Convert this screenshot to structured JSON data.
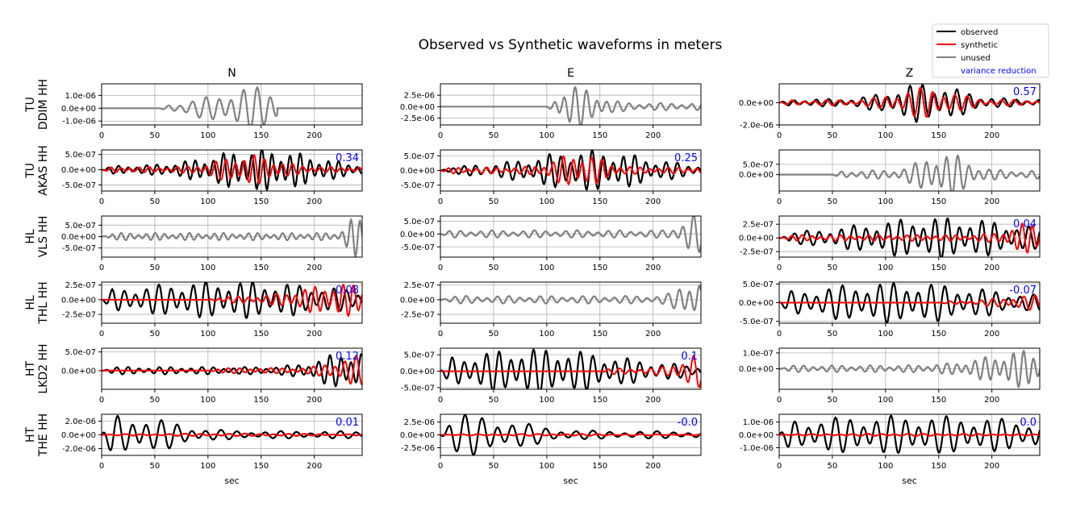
{
  "title": "Observed vs Synthetic waveforms in meters",
  "columns": [
    "N",
    "E",
    "Z"
  ],
  "xlabel": "sec",
  "xlim": [
    0,
    245
  ],
  "xticks": [
    0,
    50,
    100,
    150,
    200
  ],
  "legend": {
    "position": "top-right",
    "items": [
      {
        "label": "observed",
        "color": "#000000",
        "kind": "line"
      },
      {
        "label": "synthetic",
        "color": "#ff0000",
        "kind": "line"
      },
      {
        "label": "unused",
        "color": "#808080",
        "kind": "line"
      },
      {
        "label": "variance reduction",
        "color": "#0000ff",
        "kind": "text"
      }
    ]
  },
  "colors": {
    "observed": "#000000",
    "synthetic": "#ff0000",
    "unused": "#808080",
    "vr": "#0000ff",
    "grid": "#b0b0b0"
  },
  "rows": [
    {
      "net": "TU",
      "sta": "DDIM HH"
    },
    {
      "net": "TU",
      "sta": "AKAS HH"
    },
    {
      "net": "HL",
      "sta": "VLS HH"
    },
    {
      "net": "HL",
      "sta": "THL HH"
    },
    {
      "net": "HT",
      "sta": "LKD2 HH"
    },
    {
      "net": "HT",
      "sta": "THE HH"
    }
  ],
  "chart_data": [
    {
      "type": "line",
      "row": 0,
      "col": "N",
      "used": false,
      "vr": "",
      "ylim": [
        -1.3e-06,
        1.9e-06
      ],
      "yticks": [
        -1e-06,
        0,
        1e-06
      ],
      "ytick_labels": [
        "-1.0e-06",
        "0.0e+00",
        "1.0e-06"
      ],
      "obs": {
        "amp": 1.7e-06,
        "start": 55,
        "peak": 145,
        "spread": 35,
        "period": 12,
        "end": 165
      },
      "syn": null
    },
    {
      "type": "line",
      "row": 0,
      "col": "E",
      "used": false,
      "vr": "",
      "ylim": [
        -4e-06,
        5e-06
      ],
      "yticks": [
        -2.5e-06,
        0,
        2.5e-06
      ],
      "ytick_labels": [
        "-2.5e-06",
        "0.0e+00",
        "2.5e-06"
      ],
      "obs": {
        "amp": 4.5e-06,
        "start": 100,
        "peak": 128,
        "spread": 18,
        "period": 10,
        "end": 245
      },
      "syn": null
    },
    {
      "type": "line",
      "row": 0,
      "col": "Z",
      "used": true,
      "vr": "0.57",
      "ylim": [
        -2e-06,
        1.7e-06
      ],
      "yticks": [
        -2e-06,
        0
      ],
      "ytick_labels": [
        "-2.0e-06",
        "0.0e+00"
      ],
      "obs": {
        "amp": 1.8e-06,
        "start": 0,
        "peak": 138,
        "spread": 30,
        "period": 11,
        "end": 245
      },
      "syn": {
        "amp": 1.4e-06,
        "start": 0,
        "peak": 138,
        "spread": 25,
        "period": 11,
        "end": 245
      }
    },
    {
      "type": "line",
      "row": 1,
      "col": "N",
      "used": true,
      "vr": "0.34",
      "ylim": [
        -7e-07,
        6.5e-07
      ],
      "yticks": [
        -5e-07,
        0,
        5e-07
      ],
      "ytick_labels": [
        "-5.0e-07",
        "0.0e+00",
        "5.0e-07"
      ],
      "obs": {
        "amp": 7e-07,
        "start": 0,
        "peak": 150,
        "spread": 45,
        "period": 9,
        "end": 245
      },
      "syn": {
        "amp": 5e-07,
        "start": 0,
        "peak": 138,
        "spread": 25,
        "period": 9,
        "end": 245
      }
    },
    {
      "type": "line",
      "row": 1,
      "col": "E",
      "used": true,
      "vr": "0.25",
      "ylim": [
        -7e-07,
        7e-07
      ],
      "yticks": [
        -5e-07,
        0,
        5e-07
      ],
      "ytick_labels": [
        "-5.0e-07",
        "0.0e+00",
        "5.0e-07"
      ],
      "obs": {
        "amp": 7e-07,
        "start": 0,
        "peak": 140,
        "spread": 50,
        "period": 10,
        "end": 245
      },
      "syn": {
        "amp": 6e-07,
        "start": 0,
        "peak": 130,
        "spread": 20,
        "period": 9,
        "end": 245
      }
    },
    {
      "type": "line",
      "row": 1,
      "col": "Z",
      "used": false,
      "vr": "",
      "ylim": [
        -8e-07,
        1.2e-06
      ],
      "yticks": [
        0,
        5e-07
      ],
      "ytick_labels": [
        "0.0e+00",
        "5.0e-07"
      ],
      "obs": {
        "amp": 1.1e-06,
        "start": 50,
        "peak": 155,
        "spread": 20,
        "period": 10,
        "end": 245
      },
      "syn": null
    },
    {
      "type": "line",
      "row": 2,
      "col": "N",
      "used": false,
      "vr": "",
      "ylim": [
        -9e-07,
        9e-07
      ],
      "yticks": [
        -5e-07,
        0,
        5e-07
      ],
      "ytick_labels": [
        "-5.0e-07",
        "0.0e+00",
        "5.0e-07"
      ],
      "obs": {
        "amp": 9e-07,
        "start": 0,
        "peak": 240,
        "spread": 8,
        "period": 8,
        "end": 245
      },
      "syn": null
    },
    {
      "type": "line",
      "row": 2,
      "col": "E",
      "used": false,
      "vr": "",
      "ylim": [
        -9e-07,
        7e-07
      ],
      "yticks": [
        -5e-07,
        0,
        5e-07
      ],
      "ytick_labels": [
        "-5.0e-07",
        "0.0e+00",
        "5.0e-07"
      ],
      "obs": {
        "amp": 8e-07,
        "start": 0,
        "peak": 238,
        "spread": 10,
        "period": 10,
        "end": 245
      },
      "syn": null
    },
    {
      "type": "line",
      "row": 2,
      "col": "Z",
      "used": true,
      "vr": "0.04",
      "ylim": [
        -3.5e-07,
        4e-07
      ],
      "yticks": [
        -2.5e-07,
        0,
        2.5e-07
      ],
      "ytick_labels": [
        "-2.5e-07",
        "0.0e+00",
        "2.5e-07"
      ],
      "obs": {
        "amp": 3.8e-07,
        "start": 0,
        "peak": 150,
        "spread": 70,
        "period": 11,
        "end": 245
      },
      "syn": {
        "amp": 3e-07,
        "start": 0,
        "peak": 240,
        "spread": 20,
        "period": 9,
        "end": 245
      }
    },
    {
      "type": "line",
      "row": 3,
      "col": "N",
      "used": true,
      "vr": "0.08",
      "ylim": [
        -4e-07,
        3e-07
      ],
      "yticks": [
        -2.5e-07,
        0,
        2.5e-07
      ],
      "ytick_labels": [
        "-2.5e-07",
        "0.0e+00",
        "2.5e-07"
      ],
      "obs": {
        "amp": 3.2e-07,
        "start": 0,
        "peak": 120,
        "spread": 90,
        "period": 11,
        "end": 245
      },
      "syn": {
        "amp": 2.8e-07,
        "start": 100,
        "peak": 225,
        "spread": 35,
        "period": 9,
        "end": 245
      }
    },
    {
      "type": "line",
      "row": 3,
      "col": "E",
      "used": false,
      "vr": "",
      "ylim": [
        -4e-07,
        3e-07
      ],
      "yticks": [
        -2.5e-07,
        0,
        2.5e-07
      ],
      "ytick_labels": [
        "-2.5e-07",
        "0.0e+00",
        "2.5e-07"
      ],
      "obs": {
        "amp": 3.6e-07,
        "start": 0,
        "peak": 238,
        "spread": 12,
        "period": 10,
        "end": 245
      },
      "syn": null
    },
    {
      "type": "line",
      "row": 3,
      "col": "Z",
      "used": true,
      "vr": "-0.07",
      "ylim": [
        -5.5e-07,
        5.5e-07
      ],
      "yticks": [
        -5e-07,
        0,
        5e-07
      ],
      "ytick_labels": [
        "-5.0e-07",
        "0.0e+00",
        "5.0e-07"
      ],
      "obs": {
        "amp": 5.5e-07,
        "start": 0,
        "peak": 110,
        "spread": 80,
        "period": 12,
        "end": 245
      },
      "syn": {
        "amp": 2e-07,
        "start": 150,
        "peak": 240,
        "spread": 30,
        "period": 10,
        "end": 245
      }
    },
    {
      "type": "line",
      "row": 4,
      "col": "N",
      "used": true,
      "vr": "0.12",
      "ylim": [
        -5e-07,
        6e-07
      ],
      "yticks": [
        0,
        5e-07
      ],
      "ytick_labels": [
        "0.0e+00",
        "5.0e-07"
      ],
      "obs": {
        "amp": 5.5e-07,
        "start": 0,
        "peak": 240,
        "spread": 30,
        "period": 10,
        "end": 245
      },
      "syn": {
        "amp": 4e-07,
        "start": 100,
        "peak": 240,
        "spread": 20,
        "period": 10,
        "end": 245
      }
    },
    {
      "type": "line",
      "row": 4,
      "col": "E",
      "used": true,
      "vr": "0.1",
      "ylim": [
        -5.5e-07,
        7e-07
      ],
      "yticks": [
        -5e-07,
        0,
        5e-07
      ],
      "ytick_labels": [
        "-5.0e-07",
        "0.0e+00",
        "5.0e-07"
      ],
      "obs": {
        "amp": 7e-07,
        "start": 0,
        "peak": 90,
        "spread": 70,
        "period": 11,
        "end": 245
      },
      "syn": {
        "amp": 5e-07,
        "start": 150,
        "peak": 240,
        "spread": 15,
        "period": 10,
        "end": 245
      }
    },
    {
      "type": "line",
      "row": 4,
      "col": "Z",
      "used": false,
      "vr": "",
      "ylim": [
        -1.3e-07,
        1.3e-07
      ],
      "yticks": [
        0,
        1e-07
      ],
      "ytick_labels": [
        "0.0e+00",
        "1.0e-07"
      ],
      "obs": {
        "amp": 1.2e-07,
        "start": 0,
        "peak": 238,
        "spread": 40,
        "period": 9,
        "end": 245
      },
      "syn": null
    },
    {
      "type": "line",
      "row": 5,
      "col": "N",
      "used": true,
      "vr": "0.01",
      "ylim": [
        -3e-06,
        3e-06
      ],
      "yticks": [
        -2e-06,
        0,
        2e-06
      ],
      "ytick_labels": [
        "-2.0e-06",
        "0.0e+00",
        "2.0e-06"
      ],
      "obs": {
        "amp": 3e-06,
        "start": 0,
        "peak": 22,
        "spread": 40,
        "period": 14,
        "end": 245
      },
      "syn": {
        "amp": 2e-07,
        "start": 0,
        "peak": 120,
        "spread": 80,
        "period": 14,
        "end": 245
      }
    },
    {
      "type": "line",
      "row": 5,
      "col": "E",
      "used": true,
      "vr": "-0.0",
      "ylim": [
        -4e-06,
        4e-06
      ],
      "yticks": [
        -2.5e-06,
        0,
        2.5e-06
      ],
      "ytick_labels": [
        "-2.5e-06",
        "0.0e+00",
        "2.5e-06"
      ],
      "obs": {
        "amp": 4e-06,
        "start": 0,
        "peak": 25,
        "spread": 45,
        "period": 15,
        "end": 245
      },
      "syn": {
        "amp": 2e-07,
        "start": 0,
        "peak": 120,
        "spread": 80,
        "period": 14,
        "end": 245
      }
    },
    {
      "type": "line",
      "row": 5,
      "col": "Z",
      "used": true,
      "vr": "0.0",
      "ylim": [
        -1.6e-06,
        1.6e-06
      ],
      "yticks": [
        -1e-06,
        0,
        1e-06
      ],
      "ytick_labels": [
        "-1.0e-06",
        "0.0e+00",
        "1.0e-06"
      ],
      "obs": {
        "amp": 1.5e-06,
        "start": 0,
        "peak": 120,
        "spread": 140,
        "period": 13,
        "end": 245
      },
      "syn": {
        "amp": 1e-07,
        "start": 0,
        "peak": 120,
        "spread": 80,
        "period": 13,
        "end": 245
      }
    }
  ]
}
